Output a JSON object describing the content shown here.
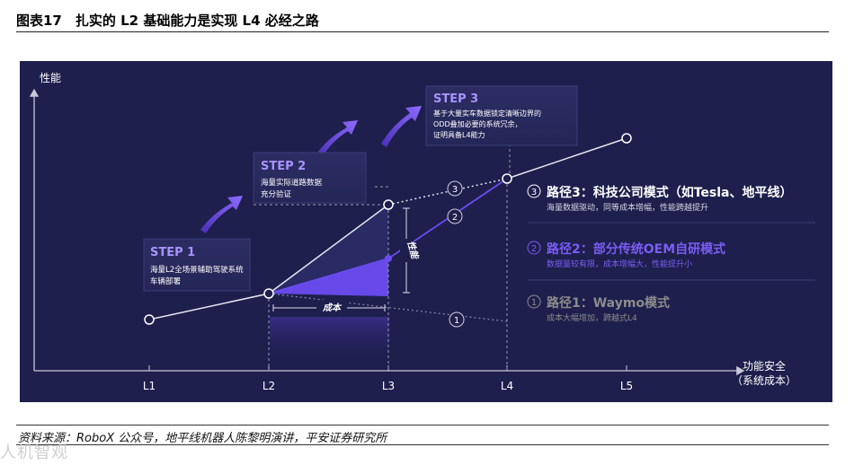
{
  "figure": {
    "title": "图表17　扎实的 L2 基础能力是实现 L4 必经之路",
    "source": "资料来源：RoboX 公众号，地平线机器人陈黎明演讲，平安证券研究所",
    "watermark": "人机智观"
  },
  "diagram": {
    "y_axis_label": "性能",
    "x_axis_label_line1": "功能安全",
    "x_axis_label_line2": "（系统成本）",
    "levels": [
      "L1",
      "L2",
      "L3",
      "L4",
      "L5"
    ],
    "steps": [
      {
        "title": "STEP 1",
        "lines": [
          "海量L2全场景辅助驾驶系统",
          "车辆部署"
        ]
      },
      {
        "title": "STEP 2",
        "lines": [
          "海量实际道路数据",
          "充分验证"
        ]
      },
      {
        "title": "STEP 3",
        "lines": [
          "基于大量实车数据锁定清晰边界的",
          "ODD叠加必要的系统冗余，",
          "证明具备L4能力"
        ]
      }
    ],
    "gap_labels": {
      "cost": "成本",
      "performance": "性能"
    },
    "paths": [
      {
        "num": "3",
        "title": "路径3：科技公司模式（如Tesla、地平线）",
        "desc": "海量数据驱动，同等成本增幅，性能跨越提升",
        "color": "#ffffff"
      },
      {
        "num": "2",
        "title": "路径2：部分传统OEM自研模式",
        "desc": "数据量较有限，成本增幅大，性能提升小",
        "color": "#7b5cf5"
      },
      {
        "num": "1",
        "title": "路径1：Waymo模式",
        "desc": "成本大幅增加，跨越式L4",
        "color": "#8c8c8c"
      }
    ],
    "markers": [
      "3",
      "2",
      "1"
    ]
  }
}
